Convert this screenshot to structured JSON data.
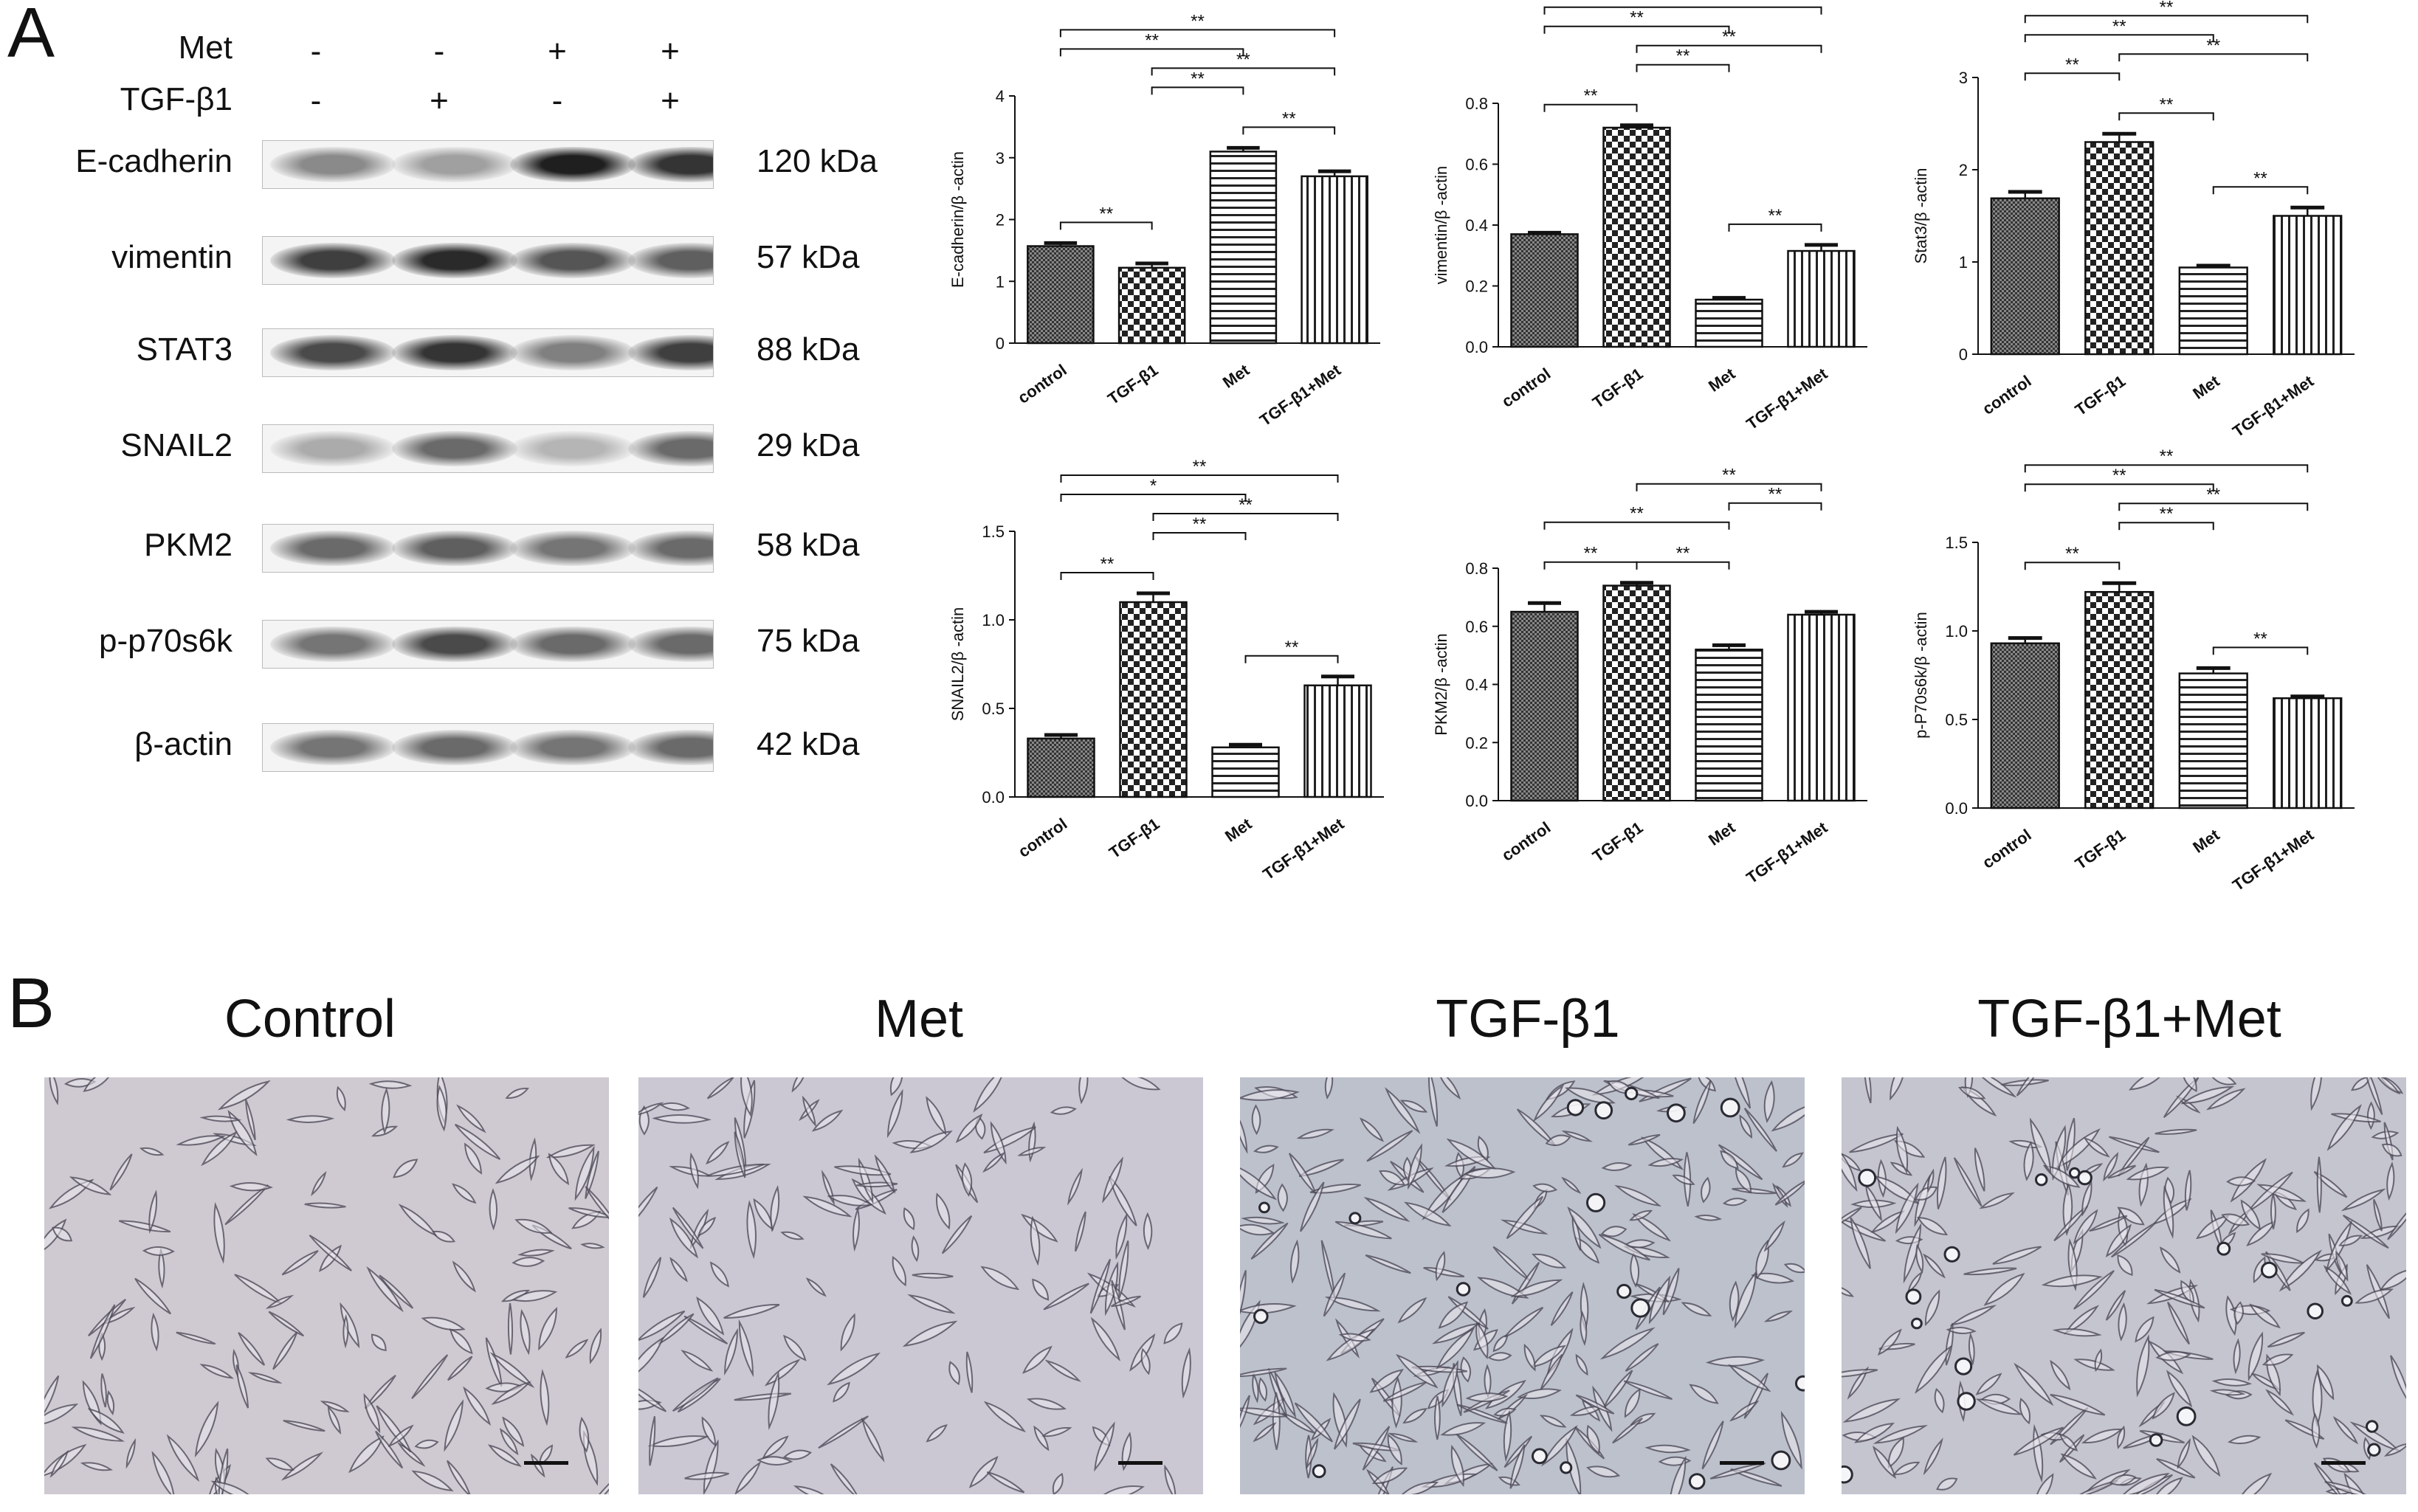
{
  "panel_a": {
    "letter": "A",
    "treatment_rows": [
      {
        "label": "Met",
        "signs": [
          "-",
          "-",
          "+",
          "+"
        ]
      },
      {
        "label": "TGF-β1",
        "signs": [
          "-",
          "+",
          "-",
          "+"
        ]
      }
    ],
    "blots": [
      {
        "label": "E-cadherin",
        "kda": "120 kDa",
        "intensity": [
          0.45,
          0.35,
          0.95,
          0.85
        ]
      },
      {
        "label": "vimentin",
        "kda": "57 kDa",
        "intensity": [
          0.8,
          0.9,
          0.7,
          0.65
        ]
      },
      {
        "label": "STAT3",
        "kda": "88 kDa",
        "intensity": [
          0.75,
          0.85,
          0.5,
          0.8
        ]
      },
      {
        "label": "SNAIL2",
        "kda": "29 kDa",
        "intensity": [
          0.3,
          0.6,
          0.25,
          0.6
        ]
      },
      {
        "label": "PKM2",
        "kda": "58 kDa",
        "intensity": [
          0.6,
          0.65,
          0.55,
          0.6
        ]
      },
      {
        "label": "p-p70s6k",
        "kda": "75 kDa",
        "intensity": [
          0.55,
          0.75,
          0.6,
          0.6
        ]
      },
      {
        "label": "β-actin",
        "kda": "42 kDa",
        "intensity": [
          0.55,
          0.6,
          0.55,
          0.6
        ]
      }
    ]
  },
  "chart_data": [
    {
      "type": "bar",
      "categories": [
        "control",
        "TGF-β1",
        "Met",
        "TGF-β1+Met"
      ],
      "ylabel": "E-cadherin/β -actin",
      "ylim": [
        0,
        4
      ],
      "yticks": [
        "0",
        "1",
        "2",
        "3",
        "4"
      ],
      "values": [
        1.57,
        1.22,
        3.1,
        2.7
      ],
      "errors": [
        0.05,
        0.07,
        0.06,
        0.08
      ],
      "sig": [
        {
          "a": 0,
          "b": 1,
          "t": "**"
        },
        {
          "a": 2,
          "b": 3,
          "t": "**"
        },
        {
          "a": 1,
          "b": 2,
          "t": "**"
        },
        {
          "a": 1,
          "b": 3,
          "t": "**"
        },
        {
          "a": 0,
          "b": 2,
          "t": "**"
        },
        {
          "a": 0,
          "b": 3,
          "t": "**"
        }
      ]
    },
    {
      "type": "bar",
      "categories": [
        "control",
        "TGF-β1",
        "Met",
        "TGF-β1+Met"
      ],
      "ylabel": "vimentin/β -actin",
      "ylim": [
        0,
        0.8
      ],
      "yticks": [
        "0.0",
        "0.2",
        "0.4",
        "0.6",
        "0.8"
      ],
      "values": [
        0.37,
        0.72,
        0.155,
        0.315
      ],
      "errors": [
        0.005,
        0.008,
        0.006,
        0.02
      ],
      "sig": [
        {
          "a": 2,
          "b": 3,
          "t": "**"
        },
        {
          "a": 0,
          "b": 1,
          "t": "**"
        },
        {
          "a": 1,
          "b": 2,
          "t": "**"
        },
        {
          "a": 1,
          "b": 3,
          "t": "**"
        },
        {
          "a": 0,
          "b": 2,
          "t": "**"
        },
        {
          "a": 0,
          "b": 3,
          "t": "**"
        }
      ]
    },
    {
      "type": "bar",
      "categories": [
        "control",
        "TGF-β1",
        "Met",
        "TGF-β1+Met"
      ],
      "ylabel": "Stat3/β -actin",
      "ylim": [
        0,
        3
      ],
      "yticks": [
        "0",
        "1",
        "2",
        "3"
      ],
      "values": [
        1.69,
        2.3,
        0.94,
        1.5
      ],
      "errors": [
        0.07,
        0.09,
        0.02,
        0.09
      ],
      "sig": [
        {
          "a": 2,
          "b": 3,
          "t": "**"
        },
        {
          "a": 1,
          "b": 2,
          "t": "**"
        },
        {
          "a": 0,
          "b": 1,
          "t": "**"
        },
        {
          "a": 1,
          "b": 3,
          "t": "**"
        },
        {
          "a": 0,
          "b": 2,
          "t": "**"
        },
        {
          "a": 0,
          "b": 3,
          "t": "**"
        }
      ]
    },
    {
      "type": "bar",
      "categories": [
        "control",
        "TGF-β1",
        "Met",
        "TGF-β1+Met"
      ],
      "ylabel": "SNAIL2/β -actin",
      "ylim": [
        0,
        1.5
      ],
      "yticks": [
        "0.0",
        "0.5",
        "1.0",
        "1.5"
      ],
      "values": [
        0.33,
        1.1,
        0.28,
        0.63
      ],
      "errors": [
        0.02,
        0.05,
        0.015,
        0.05
      ],
      "sig": [
        {
          "a": 2,
          "b": 3,
          "t": "**"
        },
        {
          "a": 0,
          "b": 1,
          "t": "**"
        },
        {
          "a": 1,
          "b": 2,
          "t": "**"
        },
        {
          "a": 1,
          "b": 3,
          "t": "**"
        },
        {
          "a": 0,
          "b": 2,
          "t": "*"
        },
        {
          "a": 0,
          "b": 3,
          "t": "**"
        }
      ]
    },
    {
      "type": "bar",
      "categories": [
        "control",
        "TGF-β1",
        "Met",
        "TGF-β1+Met"
      ],
      "ylabel": "PKM2/β -actin",
      "ylim": [
        0,
        0.8
      ],
      "yticks": [
        "0.0",
        "0.2",
        "0.4",
        "0.6",
        "0.8"
      ],
      "values": [
        0.65,
        0.74,
        0.52,
        0.64
      ],
      "errors": [
        0.03,
        0.01,
        0.015,
        0.01
      ],
      "sig": [
        {
          "a": 0,
          "b": 1,
          "t": "**"
        },
        {
          "a": 1,
          "b": 2,
          "t": "**"
        },
        {
          "a": 0,
          "b": 2,
          "t": "**"
        },
        {
          "a": 2,
          "b": 3,
          "t": "**"
        },
        {
          "a": 1,
          "b": 3,
          "t": "**"
        }
      ]
    },
    {
      "type": "bar",
      "categories": [
        "control",
        "TGF-β1",
        "Met",
        "TGF-β1+Met"
      ],
      "ylabel": "p-P70s6k/β -actin",
      "ylim": [
        0,
        1.5
      ],
      "yticks": [
        "0.0",
        "0.5",
        "1.0",
        "1.5"
      ],
      "values": [
        0.93,
        1.22,
        0.76,
        0.62
      ],
      "errors": [
        0.03,
        0.05,
        0.03,
        0.01
      ],
      "sig": [
        {
          "a": 2,
          "b": 3,
          "t": "**"
        },
        {
          "a": 0,
          "b": 1,
          "t": "**"
        },
        {
          "a": 1,
          "b": 2,
          "t": "**"
        },
        {
          "a": 1,
          "b": 3,
          "t": "**"
        },
        {
          "a": 0,
          "b": 2,
          "t": "**"
        },
        {
          "a": 0,
          "b": 3,
          "t": "**"
        }
      ]
    }
  ],
  "panel_b": {
    "letter": "B",
    "titles": [
      "Control",
      "Met",
      "TGF-β1",
      "TGF-β1+Met"
    ]
  },
  "colors": {
    "bar_fill": "#ffffff",
    "bar_stroke": "#111111",
    "micro_bg": "#c9c6cf"
  }
}
